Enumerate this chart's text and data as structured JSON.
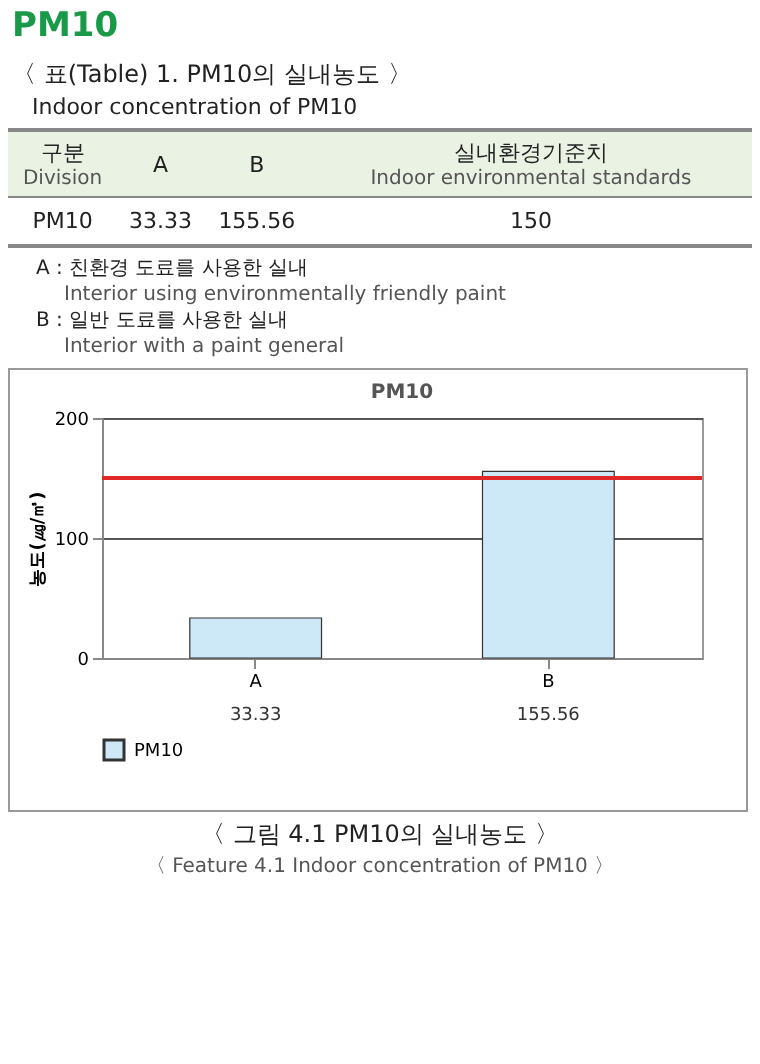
{
  "chart_data": {
    "type": "bar",
    "title": "PM10",
    "ylabel": "농도(㎍/㎥)",
    "categories": [
      "A",
      "B"
    ],
    "series": [
      {
        "name": "PM10",
        "color": "#cde8f7",
        "values": [
          33.33,
          155.56
        ]
      }
    ],
    "ylim": [
      0,
      200
    ],
    "yticks": [
      0,
      100,
      200
    ],
    "grid": "y",
    "legend": "bottom",
    "data_labels": true,
    "ref_lines": [
      {
        "axis": "y",
        "value": 150,
        "color": "#e02828"
      }
    ],
    "annotations": [
      "PM10",
      "〈 표(Table) 1. PM10의 실내농도 〉",
      "Indoor concentration of PM10",
      "구분",
      "Division",
      "A",
      "B",
      "실내환경기준치",
      "Indoor environmental standards",
      "PM10",
      "33.33",
      "155.56",
      "150",
      "A : 친환경 도료를 사용한 실내",
      "Interior using environmentally friendly paint",
      "B : 일반 도료를 사용한 실내",
      "Interior with a paint general",
      "〈 그림 4.1  PM10의 실내농도 〉",
      "〈 Feature 4.1  Indoor concentration of PM10 〉"
    ]
  }
}
